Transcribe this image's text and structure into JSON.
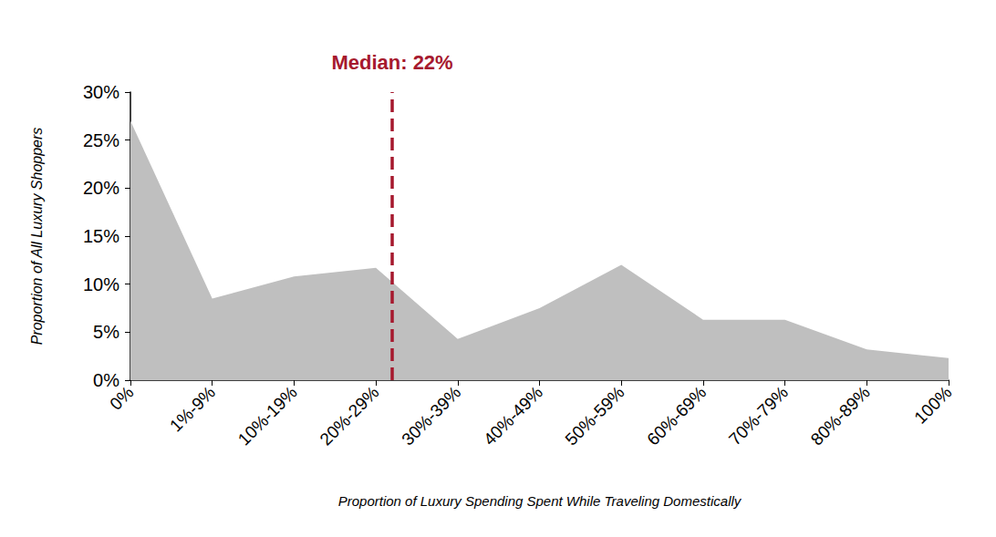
{
  "chart_data": {
    "type": "area",
    "x_label": "Proportion of Luxury Spending Spent While Traveling Domestically",
    "y_label": "Proportion of All Luxury Shoppers",
    "categories": [
      "0%",
      "1%-9%",
      "10%-19%",
      "20%-29%",
      "30%-39%",
      "40%-49%",
      "50%-59%",
      "60%-69%",
      "70%-79%",
      "80%-89%",
      "100%"
    ],
    "values": [
      27,
      8.5,
      10.8,
      11.7,
      4.3,
      7.5,
      12,
      6.3,
      6.3,
      3.2,
      2.3
    ],
    "color": "#bfbfbf",
    "ylim": [
      0,
      30
    ],
    "yticks": [
      {
        "value": 0,
        "label": "0%"
      },
      {
        "value": 5,
        "label": "5%"
      },
      {
        "value": 10,
        "label": "10%"
      },
      {
        "value": 15,
        "label": "15%"
      },
      {
        "value": 20,
        "label": "20%"
      },
      {
        "value": 25,
        "label": "25%"
      },
      {
        "value": 30,
        "label": "30%"
      }
    ],
    "grid": false,
    "median": {
      "value": 22,
      "label": "Median: 22%",
      "color": "#a6192e",
      "line_style": "dashed"
    }
  }
}
